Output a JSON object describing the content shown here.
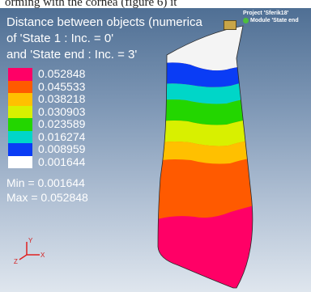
{
  "caption": "orming with the cornea (figure 6) it",
  "title": {
    "line1": "Distance between objects (numerica",
    "line2": "of 'State 1 : Inc. = 0'",
    "line3": "and 'State end : Inc. = 3'"
  },
  "legend": [
    {
      "label": "0.052848",
      "color": "#ff0066"
    },
    {
      "label": "0.045533",
      "color": "#ff5a00"
    },
    {
      "label": "0.038218",
      "color": "#ffc000"
    },
    {
      "label": "0.030903",
      "color": "#d8f000"
    },
    {
      "label": "0.023589",
      "color": "#23d600"
    },
    {
      "label": "0.016274",
      "color": "#00d6c8"
    },
    {
      "label": "0.008959",
      "color": "#0a3cf5"
    },
    {
      "label": "0.001644",
      "color": "#ffffff"
    }
  ],
  "stats": {
    "min": "Min = 0.001644",
    "max": "Max = 0.052848"
  },
  "project": {
    "line1": "Project 'Sferik18'",
    "line2": "Module 'State end"
  },
  "axes": {
    "y": "Y",
    "z": "Z",
    "x": "X"
  }
}
